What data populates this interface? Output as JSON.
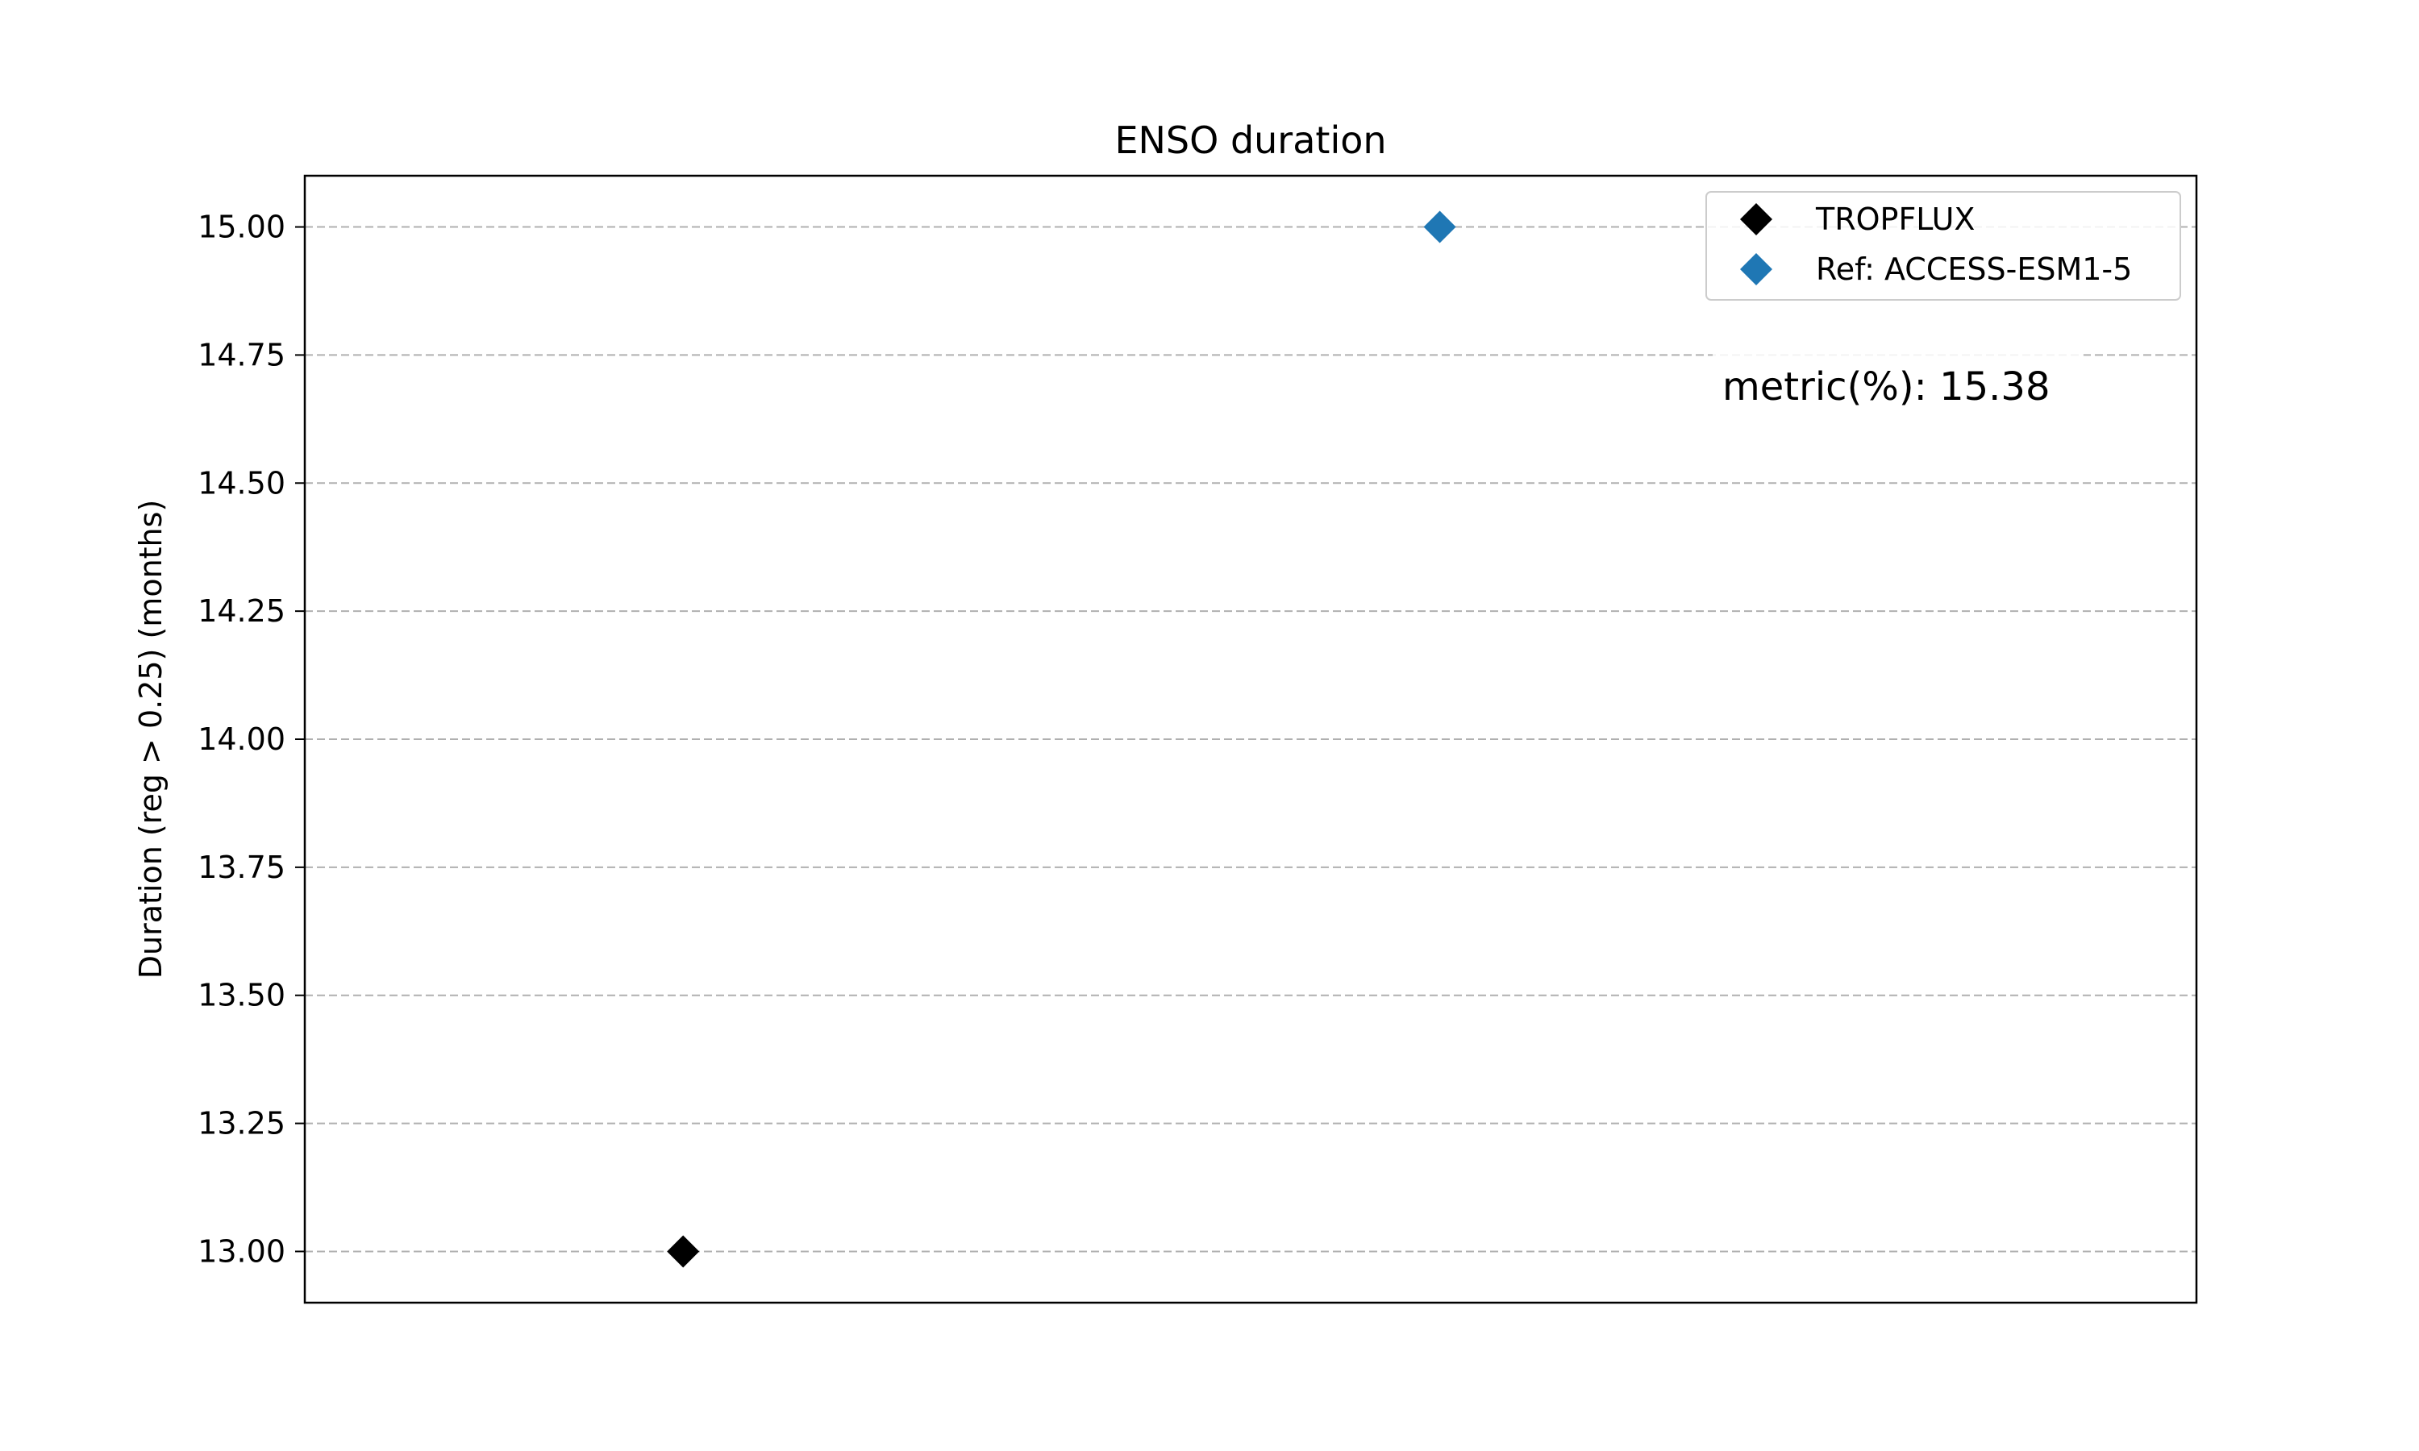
{
  "chart_data": {
    "type": "scatter",
    "title": "ENSO duration",
    "xlabel": "",
    "ylabel": "Duration (reg > 0.25) (months)",
    "ylim": [
      12.9,
      15.1
    ],
    "yticks": [
      "13.00",
      "13.25",
      "13.50",
      "13.75",
      "14.00",
      "14.25",
      "14.50",
      "14.75",
      "15.00"
    ],
    "xlim": [
      0,
      5
    ],
    "grid": "y, dashed",
    "legend_position": "top-right",
    "series": [
      {
        "name": "TROPFLUX",
        "color": "#000000",
        "marker": "diamond",
        "points": [
          {
            "x": 1,
            "y": 13.0
          }
        ]
      },
      {
        "name": "Ref: ACCESS-ESM1-5",
        "color": "#1f77b4",
        "marker": "diamond",
        "points": [
          {
            "x": 3,
            "y": 15.0
          }
        ]
      }
    ],
    "annotation": "metric(%): 15.38"
  }
}
